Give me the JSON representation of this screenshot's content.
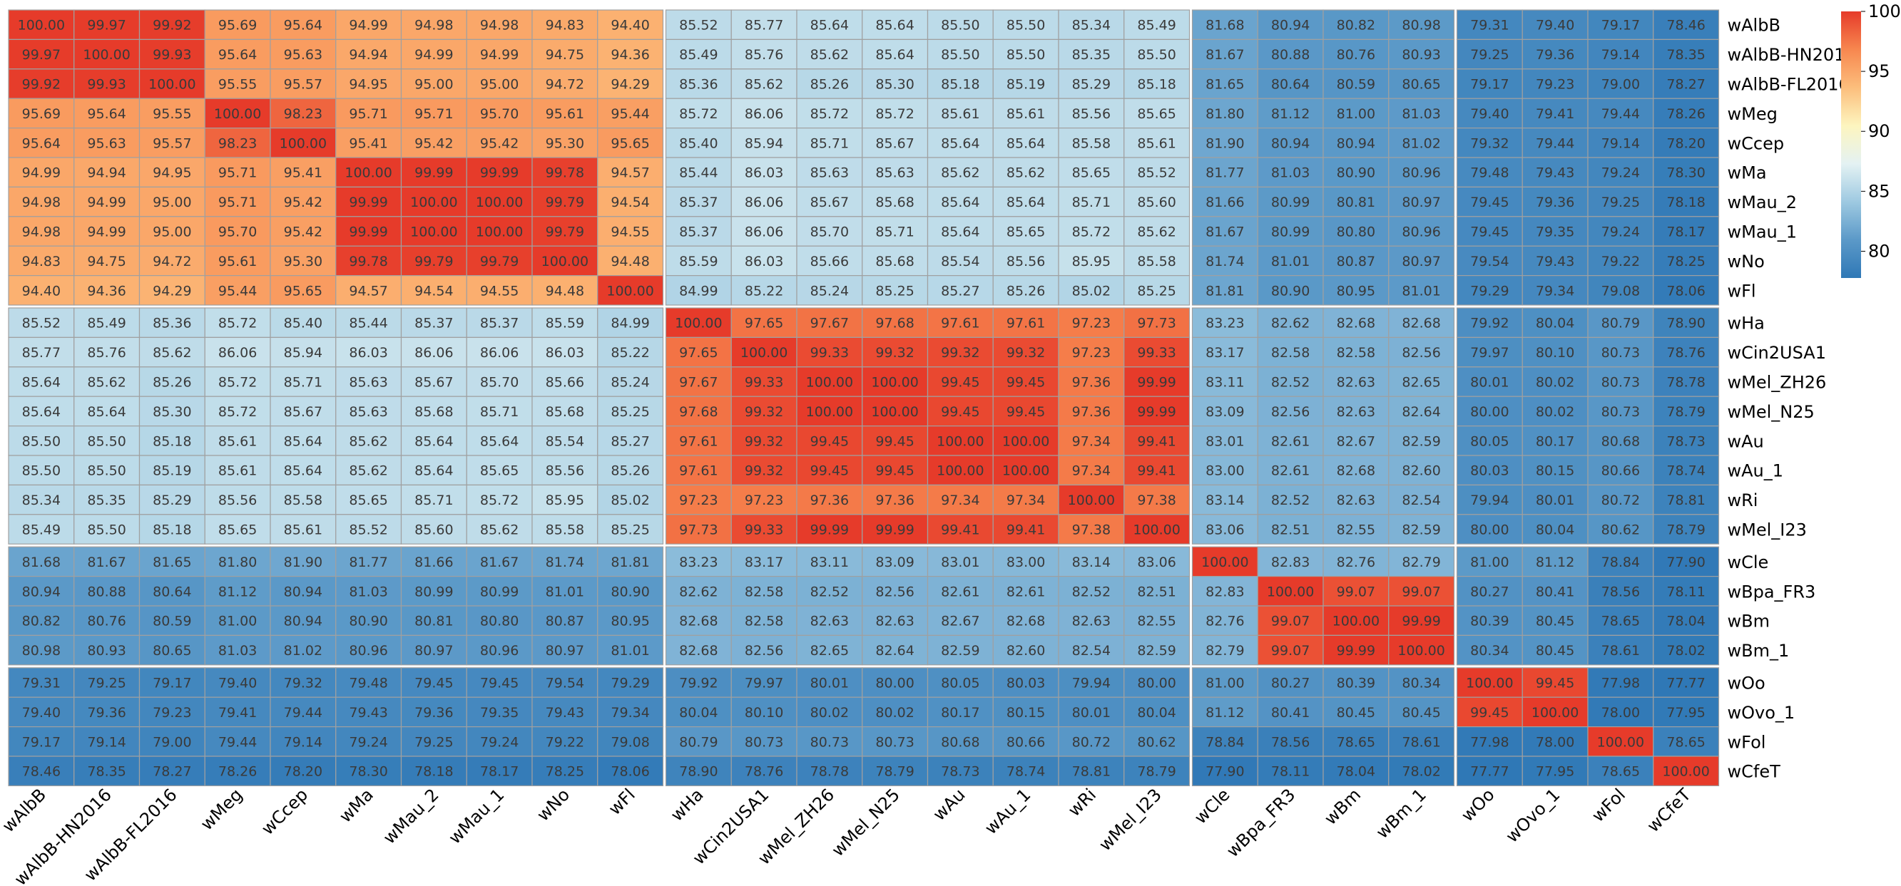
{
  "chart_data": {
    "type": "heatmap",
    "title": "",
    "xlabel": "",
    "ylabel": "",
    "labels": [
      "wAlbB",
      "wAlbB-HN2016",
      "wAlbB-FL2016",
      "wMeg",
      "wCcep",
      "wMa",
      "wMau_2",
      "wMau_1",
      "wNo",
      "wFl",
      "wHa",
      "wCin2USA1",
      "wMel_ZH26",
      "wMel_N25",
      "wAu",
      "wAu_1",
      "wRi",
      "wMel_I23",
      "wCle",
      "wBpa_FR3",
      "wBm",
      "wBm_1",
      "wOo",
      "wOvo_1",
      "wFol",
      "wCfeT"
    ],
    "values": [
      [
        "100.00",
        "99.97",
        "99.92",
        "95.69",
        "95.64",
        "94.99",
        "94.98",
        "94.98",
        "94.83",
        "94.40",
        "85.52",
        "85.77",
        "85.64",
        "85.64",
        "85.50",
        "85.50",
        "85.34",
        "85.49",
        "81.68",
        "80.94",
        "80.82",
        "80.98",
        "79.31",
        "79.40",
        "79.17",
        "78.46"
      ],
      [
        "99.97",
        "100.00",
        "99.93",
        "95.64",
        "95.63",
        "94.94",
        "94.99",
        "94.99",
        "94.75",
        "94.36",
        "85.49",
        "85.76",
        "85.62",
        "85.64",
        "85.50",
        "85.50",
        "85.35",
        "85.50",
        "81.67",
        "80.88",
        "80.76",
        "80.93",
        "79.25",
        "79.36",
        "79.14",
        "78.35"
      ],
      [
        "99.92",
        "99.93",
        "100.00",
        "95.55",
        "95.57",
        "94.95",
        "95.00",
        "95.00",
        "94.72",
        "94.29",
        "85.36",
        "85.62",
        "85.26",
        "85.30",
        "85.18",
        "85.19",
        "85.29",
        "85.18",
        "81.65",
        "80.64",
        "80.59",
        "80.65",
        "79.17",
        "79.23",
        "79.00",
        "78.27"
      ],
      [
        "95.69",
        "95.64",
        "95.55",
        "100.00",
        "98.23",
        "95.71",
        "95.71",
        "95.70",
        "95.61",
        "95.44",
        "85.72",
        "86.06",
        "85.72",
        "85.72",
        "85.61",
        "85.61",
        "85.56",
        "85.65",
        "81.80",
        "81.12",
        "81.00",
        "81.03",
        "79.40",
        "79.41",
        "79.44",
        "78.26"
      ],
      [
        "95.64",
        "95.63",
        "95.57",
        "98.23",
        "100.00",
        "95.41",
        "95.42",
        "95.42",
        "95.30",
        "95.65",
        "85.40",
        "85.94",
        "85.71",
        "85.67",
        "85.64",
        "85.64",
        "85.58",
        "85.61",
        "81.90",
        "80.94",
        "80.94",
        "81.02",
        "79.32",
        "79.44",
        "79.14",
        "78.20"
      ],
      [
        "94.99",
        "94.94",
        "94.95",
        "95.71",
        "95.41",
        "100.00",
        "99.99",
        "99.99",
        "99.78",
        "94.57",
        "85.44",
        "86.03",
        "85.63",
        "85.63",
        "85.62",
        "85.62",
        "85.65",
        "85.52",
        "81.77",
        "81.03",
        "80.90",
        "80.96",
        "79.48",
        "79.43",
        "79.24",
        "78.30"
      ],
      [
        "94.98",
        "94.99",
        "95.00",
        "95.71",
        "95.42",
        "99.99",
        "100.00",
        "100.00",
        "99.79",
        "94.54",
        "85.37",
        "86.06",
        "85.67",
        "85.68",
        "85.64",
        "85.64",
        "85.71",
        "85.60",
        "81.66",
        "80.99",
        "80.81",
        "80.97",
        "79.45",
        "79.36",
        "79.25",
        "78.18"
      ],
      [
        "94.98",
        "94.99",
        "95.00",
        "95.70",
        "95.42",
        "99.99",
        "100.00",
        "100.00",
        "99.79",
        "94.55",
        "85.37",
        "86.06",
        "85.70",
        "85.71",
        "85.64",
        "85.65",
        "85.72",
        "85.62",
        "81.67",
        "80.99",
        "80.80",
        "80.96",
        "79.45",
        "79.35",
        "79.24",
        "78.17"
      ],
      [
        "94.83",
        "94.75",
        "94.72",
        "95.61",
        "95.30",
        "99.78",
        "99.79",
        "99.79",
        "100.00",
        "94.48",
        "85.59",
        "86.03",
        "85.66",
        "85.68",
        "85.54",
        "85.56",
        "85.95",
        "85.58",
        "81.74",
        "81.01",
        "80.87",
        "80.97",
        "79.54",
        "79.43",
        "79.22",
        "78.25"
      ],
      [
        "94.40",
        "94.36",
        "94.29",
        "95.44",
        "95.65",
        "94.57",
        "94.54",
        "94.55",
        "94.48",
        "100.00",
        "84.99",
        "85.22",
        "85.24",
        "85.25",
        "85.27",
        "85.26",
        "85.02",
        "85.25",
        "81.81",
        "80.90",
        "80.95",
        "81.01",
        "79.29",
        "79.34",
        "79.08",
        "78.06"
      ],
      [
        "85.52",
        "85.49",
        "85.36",
        "85.72",
        "85.40",
        "85.44",
        "85.37",
        "85.37",
        "85.59",
        "84.99",
        "100.00",
        "97.65",
        "97.67",
        "97.68",
        "97.61",
        "97.61",
        "97.23",
        "97.73",
        "83.23",
        "82.62",
        "82.68",
        "82.68",
        "79.92",
        "80.04",
        "80.79",
        "78.90"
      ],
      [
        "85.77",
        "85.76",
        "85.62",
        "86.06",
        "85.94",
        "86.03",
        "86.06",
        "86.06",
        "86.03",
        "85.22",
        "97.65",
        "100.00",
        "99.33",
        "99.32",
        "99.32",
        "99.32",
        "97.23",
        "99.33",
        "83.17",
        "82.58",
        "82.58",
        "82.56",
        "79.97",
        "80.10",
        "80.73",
        "78.76"
      ],
      [
        "85.64",
        "85.62",
        "85.26",
        "85.72",
        "85.71",
        "85.63",
        "85.67",
        "85.70",
        "85.66",
        "85.24",
        "97.67",
        "99.33",
        "100.00",
        "100.00",
        "99.45",
        "99.45",
        "97.36",
        "99.99",
        "83.11",
        "82.52",
        "82.63",
        "82.65",
        "80.01",
        "80.02",
        "80.73",
        "78.78"
      ],
      [
        "85.64",
        "85.64",
        "85.30",
        "85.72",
        "85.67",
        "85.63",
        "85.68",
        "85.71",
        "85.68",
        "85.25",
        "97.68",
        "99.32",
        "100.00",
        "100.00",
        "99.45",
        "99.45",
        "97.36",
        "99.99",
        "83.09",
        "82.56",
        "82.63",
        "82.64",
        "80.00",
        "80.02",
        "80.73",
        "78.79"
      ],
      [
        "85.50",
        "85.50",
        "85.18",
        "85.61",
        "85.64",
        "85.62",
        "85.64",
        "85.64",
        "85.54",
        "85.27",
        "97.61",
        "99.32",
        "99.45",
        "99.45",
        "100.00",
        "100.00",
        "97.34",
        "99.41",
        "83.01",
        "82.61",
        "82.67",
        "82.59",
        "80.05",
        "80.17",
        "80.68",
        "78.73"
      ],
      [
        "85.50",
        "85.50",
        "85.19",
        "85.61",
        "85.64",
        "85.62",
        "85.64",
        "85.65",
        "85.56",
        "85.26",
        "97.61",
        "99.32",
        "99.45",
        "99.45",
        "100.00",
        "100.00",
        "97.34",
        "99.41",
        "83.00",
        "82.61",
        "82.68",
        "82.60",
        "80.03",
        "80.15",
        "80.66",
        "78.74"
      ],
      [
        "85.34",
        "85.35",
        "85.29",
        "85.56",
        "85.58",
        "85.65",
        "85.71",
        "85.72",
        "85.95",
        "85.02",
        "97.23",
        "97.23",
        "97.36",
        "97.36",
        "97.34",
        "97.34",
        "100.00",
        "97.38",
        "83.14",
        "82.52",
        "82.63",
        "82.54",
        "79.94",
        "80.01",
        "80.72",
        "78.81"
      ],
      [
        "85.49",
        "85.50",
        "85.18",
        "85.65",
        "85.61",
        "85.52",
        "85.60",
        "85.62",
        "85.58",
        "85.25",
        "97.73",
        "99.33",
        "99.99",
        "99.99",
        "99.41",
        "99.41",
        "97.38",
        "100.00",
        "83.06",
        "82.51",
        "82.55",
        "82.59",
        "80.00",
        "80.04",
        "80.62",
        "78.79"
      ],
      [
        "81.68",
        "81.67",
        "81.65",
        "81.80",
        "81.90",
        "81.77",
        "81.66",
        "81.67",
        "81.74",
        "81.81",
        "83.23",
        "83.17",
        "83.11",
        "83.09",
        "83.01",
        "83.00",
        "83.14",
        "83.06",
        "100.00",
        "82.83",
        "82.76",
        "82.79",
        "81.00",
        "81.12",
        "78.84",
        "77.90"
      ],
      [
        "80.94",
        "80.88",
        "80.64",
        "81.12",
        "80.94",
        "81.03",
        "80.99",
        "80.99",
        "81.01",
        "80.90",
        "82.62",
        "82.58",
        "82.52",
        "82.56",
        "82.61",
        "82.61",
        "82.52",
        "82.51",
        "82.83",
        "100.00",
        "99.07",
        "99.07",
        "80.27",
        "80.41",
        "78.56",
        "78.11"
      ],
      [
        "80.82",
        "80.76",
        "80.59",
        "81.00",
        "80.94",
        "80.90",
        "80.81",
        "80.80",
        "80.87",
        "80.95",
        "82.68",
        "82.58",
        "82.63",
        "82.63",
        "82.67",
        "82.68",
        "82.63",
        "82.55",
        "82.76",
        "99.07",
        "100.00",
        "99.99",
        "80.39",
        "80.45",
        "78.65",
        "78.04"
      ],
      [
        "80.98",
        "80.93",
        "80.65",
        "81.03",
        "81.02",
        "80.96",
        "80.97",
        "80.96",
        "80.97",
        "81.01",
        "82.68",
        "82.56",
        "82.65",
        "82.64",
        "82.59",
        "82.60",
        "82.54",
        "82.59",
        "82.79",
        "99.07",
        "99.99",
        "100.00",
        "80.34",
        "80.45",
        "78.61",
        "78.02"
      ],
      [
        "79.31",
        "79.25",
        "79.17",
        "79.40",
        "79.32",
        "79.48",
        "79.45",
        "79.45",
        "79.54",
        "79.29",
        "79.92",
        "79.97",
        "80.01",
        "80.00",
        "80.05",
        "80.03",
        "79.94",
        "80.00",
        "81.00",
        "80.27",
        "80.39",
        "80.34",
        "100.00",
        "99.45",
        "77.98",
        "77.77"
      ],
      [
        "79.40",
        "79.36",
        "79.23",
        "79.41",
        "79.44",
        "79.43",
        "79.36",
        "79.35",
        "79.43",
        "79.34",
        "80.04",
        "80.10",
        "80.02",
        "80.02",
        "80.17",
        "80.15",
        "80.01",
        "80.04",
        "81.12",
        "80.41",
        "80.45",
        "80.45",
        "99.45",
        "100.00",
        "78.00",
        "77.95"
      ],
      [
        "79.17",
        "79.14",
        "79.00",
        "79.44",
        "79.14",
        "79.24",
        "79.25",
        "79.24",
        "79.22",
        "79.08",
        "80.79",
        "80.73",
        "80.73",
        "80.73",
        "80.68",
        "80.66",
        "80.72",
        "80.62",
        "78.84",
        "78.56",
        "78.65",
        "78.61",
        "77.98",
        "78.00",
        "100.00",
        "78.65"
      ],
      [
        "78.46",
        "78.35",
        "78.27",
        "78.26",
        "78.20",
        "78.30",
        "78.18",
        "78.17",
        "78.25",
        "78.06",
        "78.90",
        "78.76",
        "78.78",
        "78.79",
        "78.73",
        "78.74",
        "78.81",
        "78.79",
        "77.90",
        "78.11",
        "78.04",
        "78.02",
        "77.77",
        "77.95",
        "78.65",
        "100.00"
      ]
    ],
    "color_scale": {
      "min": 77.77,
      "max": 100,
      "stops": [
        "#2f78b6",
        "#5b99c8",
        "#9ec9e1",
        "#e4f2f3",
        "#fdf5bf",
        "#fcbe7c",
        "#f7874f",
        "#e63b2a"
      ],
      "legend_ticks": [
        80,
        85,
        90,
        95,
        100
      ]
    },
    "legend_placement": "right",
    "grid": false
  }
}
